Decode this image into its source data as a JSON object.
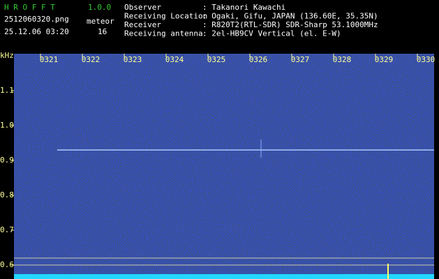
{
  "header": {
    "app": "H R O F F T",
    "version": "1.0.0",
    "file": "2512060320.png",
    "datetime": "25.12.06 03:20",
    "meteor_label": "meteor",
    "meteor_count": 16,
    "info": [
      {
        "label": "Observer",
        "value": ": Takanori Kawachi"
      },
      {
        "label": "Receiving Location",
        "value": ": Ogaki, Gifu, JAPAN (136.60E, 35.35N)"
      },
      {
        "label": "Receiver",
        "value": ": R820T2(RTL-SDR) SDR-Sharp 53.1000MHz"
      },
      {
        "label": "Receiving antenna",
        "value": ": 2el-HB9CV Vertical (el. E-W)"
      }
    ]
  },
  "chart_data": {
    "type": "spectrogram",
    "y_label": "kHz",
    "categories": [
      "0321",
      "0322",
      "0323",
      "0324",
      "0325",
      "0326",
      "0327",
      "0328",
      "0329",
      "0330"
    ],
    "ylim": [
      0.56,
      1.206
    ],
    "yticks": [
      0.6,
      0.7,
      0.8,
      0.9,
      {
        "value": 1,
        "label": "1.0"
      },
      1.1
    ]
  }
}
